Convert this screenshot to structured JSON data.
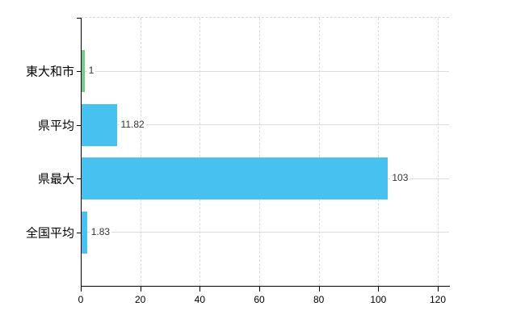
{
  "chart_data": {
    "type": "bar",
    "orientation": "horizontal",
    "categories": [
      "東大和市",
      "県平均",
      "県最大",
      "全国平均"
    ],
    "values": [
      1,
      11.82,
      103,
      1.83
    ],
    "value_labels": [
      "1",
      "11.82",
      "103",
      "1.83"
    ],
    "bar_colors": [
      "#6FCE84",
      "#47C1EF",
      "#47C1EF",
      "#47C1EF"
    ],
    "x_ticks": [
      0,
      20,
      40,
      60,
      80,
      100,
      120
    ],
    "xlim": [
      0,
      120
    ],
    "grid": true,
    "legend_position": "none",
    "gridline_style": {
      "vertical": "dashed",
      "horizontal": "solid",
      "top_border": "dashed"
    }
  },
  "colors": {
    "bar_default": "#47C1EF",
    "bar_highlight": "#6FCE84",
    "axis": "#000000",
    "gridline": "#D9D9D9",
    "value_text": "#333333",
    "label_text": "#000000",
    "background": "#FFFFFF"
  }
}
